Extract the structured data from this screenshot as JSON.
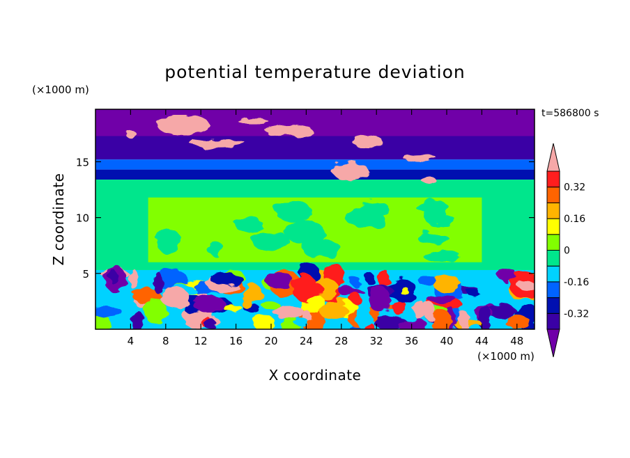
{
  "chart_data": {
    "type": "heatmap",
    "title": "potential temperature deviation",
    "xlabel": "X coordinate",
    "ylabel": "Z coordinate",
    "x_unit": "(×1000 m)",
    "y_unit": "(×1000 m)",
    "time_label": "t=586800 s",
    "xlim": [
      0,
      50
    ],
    "ylim": [
      0,
      19.7
    ],
    "x_ticks": [
      4,
      8,
      12,
      16,
      20,
      24,
      28,
      32,
      36,
      40,
      44,
      48
    ],
    "y_ticks": [
      5,
      10,
      15
    ],
    "colorbar": {
      "levels": [
        -0.4,
        -0.32,
        -0.24,
        -0.16,
        -0.08,
        0,
        0.08,
        0.16,
        0.24,
        0.32,
        0.4
      ],
      "labels": [
        "-0.32",
        "-0.16",
        "0",
        "0.16",
        "0.32"
      ],
      "label_values": [
        -0.32,
        -0.16,
        0,
        0.16,
        0.32
      ],
      "colors": [
        "#3a00a5",
        "#0010b0",
        "#0064ff",
        "#00d2ff",
        "#00e68c",
        "#82ff00",
        "#ffff00",
        "#ffb400",
        "#ff6400",
        "#ff1e1e"
      ],
      "under_color": "#7000a8",
      "over_color": "#f6a8a8"
    },
    "regions": [
      {
        "name": "upper-purple",
        "x": [
          0,
          50
        ],
        "z": [
          17.3,
          19.7
        ],
        "value": -0.45
      },
      {
        "name": "upper-blue",
        "x": [
          0,
          50
        ],
        "z": [
          15.2,
          17.3
        ],
        "value": -0.36
      },
      {
        "name": "tropopause-cyan",
        "x": [
          0,
          50
        ],
        "z": [
          14.3,
          15.2
        ],
        "value": -0.18
      },
      {
        "name": "tropopause-blue",
        "x": [
          0,
          50
        ],
        "z": [
          13.4,
          14.3
        ],
        "value": -0.3
      },
      {
        "name": "free-green",
        "x": [
          0,
          50
        ],
        "z": [
          5.3,
          13.4
        ],
        "value": -0.04
      },
      {
        "name": "mid-lime",
        "x": [
          6,
          44
        ],
        "z": [
          6.0,
          11.8
        ],
        "value": 0.03
      },
      {
        "name": "boundary-layer",
        "x": [
          0,
          50
        ],
        "z": [
          0,
          5.3
        ],
        "value": -0.1
      }
    ]
  }
}
